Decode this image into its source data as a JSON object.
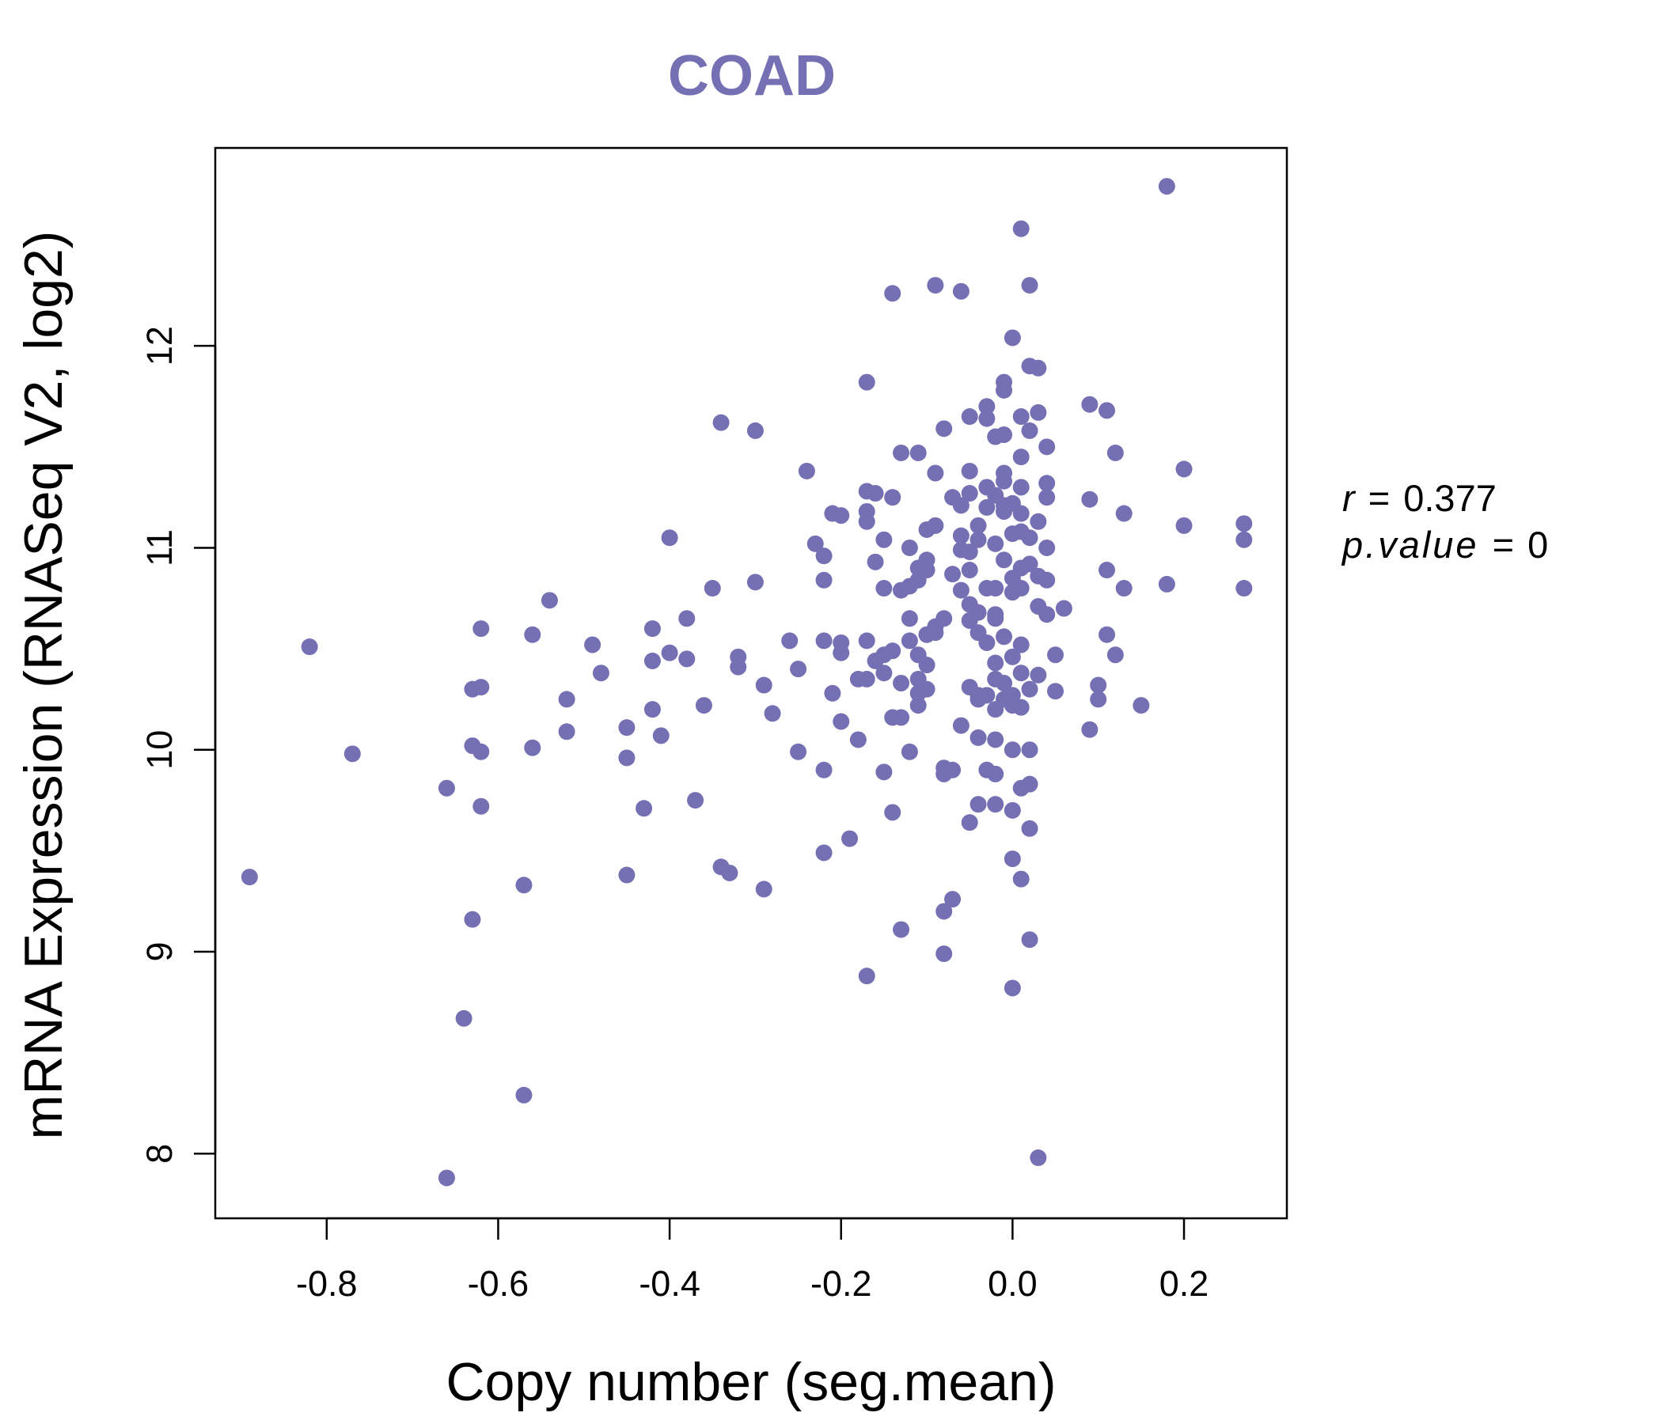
{
  "chart_data": {
    "type": "scatter",
    "title": "COAD",
    "xlabel": "Copy number (seg.mean)",
    "ylabel": "mRNA Expression (RNASeq V2, log2)",
    "xlim": [
      -0.93,
      0.32
    ],
    "ylim": [
      7.68,
      12.98
    ],
    "x_ticks": [
      -0.8,
      -0.6,
      -0.4,
      -0.2,
      0.0,
      0.2
    ],
    "x_tick_labels": [
      "-0.8",
      "-0.6",
      "-0.4",
      "-0.2",
      "0.0",
      "0.2"
    ],
    "y_ticks": [
      8,
      9,
      10,
      11,
      12
    ],
    "y_tick_labels": [
      "8",
      "9",
      "10",
      "11",
      "12"
    ],
    "point_color": "#7570b3",
    "annotations": {
      "r_label": "r",
      "r_value": "0.377",
      "p_label": "p.value",
      "p_value": "0"
    },
    "points": [
      [
        -0.89,
        9.37
      ],
      [
        -0.82,
        10.51
      ],
      [
        -0.77,
        9.98
      ],
      [
        -0.66,
        9.81
      ],
      [
        -0.66,
        7.88
      ],
      [
        -0.64,
        8.67
      ],
      [
        -0.63,
        10.3
      ],
      [
        -0.63,
        10.02
      ],
      [
        -0.63,
        9.16
      ],
      [
        -0.62,
        10.31
      ],
      [
        -0.62,
        9.99
      ],
      [
        -0.62,
        10.6
      ],
      [
        -0.62,
        9.72
      ],
      [
        -0.57,
        8.29
      ],
      [
        -0.57,
        9.33
      ],
      [
        -0.56,
        10.57
      ],
      [
        -0.56,
        10.01
      ],
      [
        -0.54,
        10.74
      ],
      [
        -0.52,
        10.25
      ],
      [
        -0.52,
        10.09
      ],
      [
        -0.49,
        10.52
      ],
      [
        -0.48,
        10.38
      ],
      [
        -0.45,
        10.11
      ],
      [
        -0.45,
        9.96
      ],
      [
        -0.45,
        9.38
      ],
      [
        -0.43,
        9.71
      ],
      [
        -0.42,
        10.6
      ],
      [
        -0.42,
        10.2
      ],
      [
        -0.42,
        10.44
      ],
      [
        -0.41,
        10.07
      ],
      [
        -0.4,
        11.05
      ],
      [
        -0.4,
        10.48
      ],
      [
        -0.38,
        10.45
      ],
      [
        -0.38,
        10.65
      ],
      [
        -0.37,
        9.75
      ],
      [
        -0.36,
        10.22
      ],
      [
        -0.35,
        10.8
      ],
      [
        -0.34,
        11.62
      ],
      [
        -0.34,
        9.42
      ],
      [
        -0.33,
        9.39
      ],
      [
        -0.32,
        10.46
      ],
      [
        -0.32,
        10.41
      ],
      [
        -0.3,
        11.58
      ],
      [
        -0.3,
        10.83
      ],
      [
        -0.29,
        10.32
      ],
      [
        -0.29,
        9.31
      ],
      [
        -0.28,
        10.18
      ],
      [
        -0.26,
        10.54
      ],
      [
        -0.25,
        9.99
      ],
      [
        -0.25,
        10.4
      ],
      [
        -0.24,
        11.38
      ],
      [
        -0.23,
        11.02
      ],
      [
        -0.22,
        10.54
      ],
      [
        -0.22,
        10.96
      ],
      [
        -0.22,
        10.84
      ],
      [
        -0.22,
        9.9
      ],
      [
        -0.22,
        9.49
      ],
      [
        -0.21,
        10.28
      ],
      [
        -0.21,
        11.17
      ],
      [
        -0.2,
        10.53
      ],
      [
        -0.2,
        11.16
      ],
      [
        -0.2,
        10.48
      ],
      [
        -0.2,
        10.14
      ],
      [
        -0.19,
        9.56
      ],
      [
        -0.18,
        10.35
      ],
      [
        -0.18,
        10.05
      ],
      [
        -0.17,
        10.54
      ],
      [
        -0.17,
        11.28
      ],
      [
        -0.17,
        11.18
      ],
      [
        -0.17,
        11.82
      ],
      [
        -0.17,
        10.35
      ],
      [
        -0.17,
        8.88
      ],
      [
        -0.17,
        11.13
      ],
      [
        -0.16,
        10.44
      ],
      [
        -0.16,
        11.27
      ],
      [
        -0.16,
        10.93
      ],
      [
        -0.15,
        10.8
      ],
      [
        -0.15,
        10.47
      ],
      [
        -0.15,
        10.38
      ],
      [
        -0.15,
        9.89
      ],
      [
        -0.15,
        11.04
      ],
      [
        -0.14,
        10.16
      ],
      [
        -0.14,
        10.49
      ],
      [
        -0.14,
        9.69
      ],
      [
        -0.14,
        11.25
      ],
      [
        -0.14,
        12.26
      ],
      [
        -0.13,
        10.79
      ],
      [
        -0.13,
        10.33
      ],
      [
        -0.13,
        10.16
      ],
      [
        -0.13,
        9.11
      ],
      [
        -0.13,
        11.47
      ],
      [
        -0.12,
        10.54
      ],
      [
        -0.12,
        9.99
      ],
      [
        -0.12,
        10.65
      ],
      [
        -0.12,
        10.81
      ],
      [
        -0.12,
        11.0
      ],
      [
        -0.11,
        10.47
      ],
      [
        -0.11,
        10.35
      ],
      [
        -0.11,
        10.84
      ],
      [
        -0.11,
        10.9
      ],
      [
        -0.11,
        11.47
      ],
      [
        -0.11,
        10.28
      ],
      [
        -0.11,
        10.22
      ],
      [
        -0.1,
        10.3
      ],
      [
        -0.1,
        10.42
      ],
      [
        -0.1,
        10.57
      ],
      [
        -0.1,
        10.89
      ],
      [
        -0.1,
        10.94
      ],
      [
        -0.1,
        11.09
      ],
      [
        -0.1,
        10.57
      ],
      [
        -0.09,
        11.11
      ],
      [
        -0.09,
        10.58
      ],
      [
        -0.09,
        11.37
      ],
      [
        -0.09,
        10.61
      ],
      [
        -0.09,
        12.3
      ],
      [
        -0.08,
        11.59
      ],
      [
        -0.08,
        9.88
      ],
      [
        -0.08,
        10.65
      ],
      [
        -0.08,
        9.91
      ],
      [
        -0.08,
        8.99
      ],
      [
        -0.08,
        9.2
      ],
      [
        -0.07,
        9.9
      ],
      [
        -0.07,
        10.87
      ],
      [
        -0.07,
        11.25
      ],
      [
        -0.07,
        9.26
      ],
      [
        -0.06,
        10.99
      ],
      [
        -0.06,
        10.79
      ],
      [
        -0.06,
        10.12
      ],
      [
        -0.06,
        11.06
      ],
      [
        -0.06,
        11.21
      ],
      [
        -0.06,
        12.27
      ],
      [
        -0.05,
        11.38
      ],
      [
        -0.05,
        11.27
      ],
      [
        -0.05,
        10.98
      ],
      [
        -0.05,
        10.31
      ],
      [
        -0.05,
        10.72
      ],
      [
        -0.05,
        10.64
      ],
      [
        -0.05,
        9.64
      ],
      [
        -0.05,
        10.89
      ],
      [
        -0.05,
        11.65
      ],
      [
        -0.04,
        10.68
      ],
      [
        -0.04,
        11.11
      ],
      [
        -0.04,
        11.04
      ],
      [
        -0.04,
        10.58
      ],
      [
        -0.04,
        10.27
      ],
      [
        -0.04,
        9.73
      ],
      [
        -0.04,
        10.06
      ],
      [
        -0.04,
        10.25
      ],
      [
        -0.03,
        11.7
      ],
      [
        -0.03,
        10.53
      ],
      [
        -0.03,
        11.2
      ],
      [
        -0.03,
        10.8
      ],
      [
        -0.03,
        10.27
      ],
      [
        -0.03,
        9.9
      ],
      [
        -0.03,
        11.3
      ],
      [
        -0.03,
        11.64
      ],
      [
        -0.02,
        10.43
      ],
      [
        -0.02,
        10.67
      ],
      [
        -0.02,
        11.55
      ],
      [
        -0.02,
        10.35
      ],
      [
        -0.02,
        10.2
      ],
      [
        -0.02,
        9.73
      ],
      [
        -0.02,
        10.05
      ],
      [
        -0.02,
        11.02
      ],
      [
        -0.02,
        10.65
      ],
      [
        -0.02,
        11.26
      ],
      [
        -0.02,
        9.88
      ],
      [
        -0.02,
        10.8
      ],
      [
        -0.01,
        11.82
      ],
      [
        -0.01,
        11.37
      ],
      [
        -0.01,
        11.21
      ],
      [
        -0.01,
        10.56
      ],
      [
        -0.01,
        10.33
      ],
      [
        -0.01,
        11.78
      ],
      [
        -0.01,
        10.94
      ],
      [
        -0.01,
        11.56
      ],
      [
        -0.01,
        10.25
      ],
      [
        -0.01,
        11.33
      ],
      [
        -0.01,
        11.18
      ],
      [
        0.0,
        11.07
      ],
      [
        0.0,
        10.78
      ],
      [
        0.0,
        10.46
      ],
      [
        0.0,
        10.27
      ],
      [
        0.0,
        10.0
      ],
      [
        0.0,
        9.46
      ],
      [
        0.0,
        12.04
      ],
      [
        0.0,
        11.22
      ],
      [
        0.0,
        10.22
      ],
      [
        0.0,
        10.85
      ],
      [
        0.0,
        8.82
      ],
      [
        0.0,
        9.7
      ],
      [
        0.01,
        11.65
      ],
      [
        0.01,
        11.45
      ],
      [
        0.01,
        10.8
      ],
      [
        0.01,
        10.38
      ],
      [
        0.01,
        10.9
      ],
      [
        0.01,
        11.17
      ],
      [
        0.01,
        10.52
      ],
      [
        0.01,
        9.36
      ],
      [
        0.01,
        9.81
      ],
      [
        0.01,
        11.3
      ],
      [
        0.01,
        12.58
      ],
      [
        0.01,
        10.21
      ],
      [
        0.01,
        11.08
      ],
      [
        0.02,
        12.3
      ],
      [
        0.02,
        11.58
      ],
      [
        0.02,
        11.05
      ],
      [
        0.02,
        10.92
      ],
      [
        0.02,
        10.3
      ],
      [
        0.02,
        9.83
      ],
      [
        0.02,
        10.0
      ],
      [
        0.02,
        11.9
      ],
      [
        0.02,
        9.61
      ],
      [
        0.02,
        9.06
      ],
      [
        0.03,
        11.89
      ],
      [
        0.03,
        11.13
      ],
      [
        0.03,
        10.86
      ],
      [
        0.03,
        10.71
      ],
      [
        0.03,
        10.37
      ],
      [
        0.03,
        11.67
      ],
      [
        0.03,
        7.98
      ],
      [
        0.04,
        11.5
      ],
      [
        0.04,
        11.25
      ],
      [
        0.04,
        11.0
      ],
      [
        0.04,
        10.67
      ],
      [
        0.04,
        10.84
      ],
      [
        0.04,
        11.32
      ],
      [
        0.05,
        10.47
      ],
      [
        0.05,
        10.29
      ],
      [
        0.06,
        10.7
      ],
      [
        0.09,
        11.71
      ],
      [
        0.09,
        11.24
      ],
      [
        0.09,
        10.1
      ],
      [
        0.1,
        10.32
      ],
      [
        0.1,
        10.25
      ],
      [
        0.11,
        10.57
      ],
      [
        0.11,
        11.68
      ],
      [
        0.11,
        10.89
      ],
      [
        0.12,
        10.47
      ],
      [
        0.12,
        11.47
      ],
      [
        0.13,
        10.8
      ],
      [
        0.13,
        11.17
      ],
      [
        0.15,
        10.22
      ],
      [
        0.18,
        10.82
      ],
      [
        0.18,
        12.79
      ],
      [
        0.2,
        11.39
      ],
      [
        0.2,
        11.11
      ],
      [
        0.27,
        11.12
      ],
      [
        0.27,
        11.04
      ],
      [
        0.27,
        10.8
      ]
    ]
  }
}
